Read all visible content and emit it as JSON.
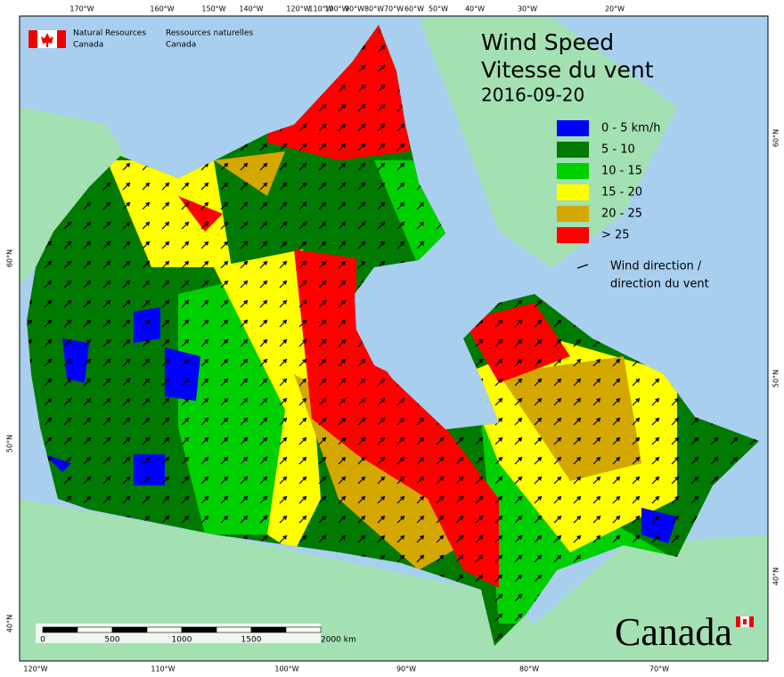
{
  "header": {
    "agency_en": [
      "Natural Resources",
      "Canada"
    ],
    "agency_fr": [
      "Ressources naturelles",
      "Canada"
    ]
  },
  "title": {
    "lines": [
      "Wind Speed",
      "Vitesse du vent",
      "2016-09-20"
    ]
  },
  "legend": {
    "items": [
      {
        "label": "0 - 5 km/h",
        "color": "#0000ff"
      },
      {
        "label": "5 - 10",
        "color": "#007a00"
      },
      {
        "label": "10 - 15",
        "color": "#00d000"
      },
      {
        "label": "15 - 20",
        "color": "#ffff00"
      },
      {
        "label": "20 - 25",
        "color": "#d4a800"
      },
      {
        "label": "> 25",
        "color": "#ff0000"
      }
    ],
    "direction": [
      "Wind direction /",
      "direction du vent"
    ]
  },
  "graticule": {
    "top": [
      "170°W",
      "160°W",
      "150°W",
      "140°W",
      "120°W",
      "110°W",
      "100°W",
      "90°W",
      "80°W",
      "70°W",
      "60°W",
      "50°W",
      "40°W",
      "30°W",
      "20°W"
    ],
    "bottom": [
      "120°W",
      "110°W",
      "100°W",
      "90°W",
      "80°W",
      "70°W"
    ],
    "left": [
      "60°N",
      "50°N",
      "40°N"
    ],
    "right": [
      "60°N",
      "50°N",
      "40°N"
    ]
  },
  "scale_bar": {
    "labels": [
      "0",
      "500",
      "1000",
      "1500",
      "2000 km"
    ]
  },
  "wordmark": "Canada"
}
